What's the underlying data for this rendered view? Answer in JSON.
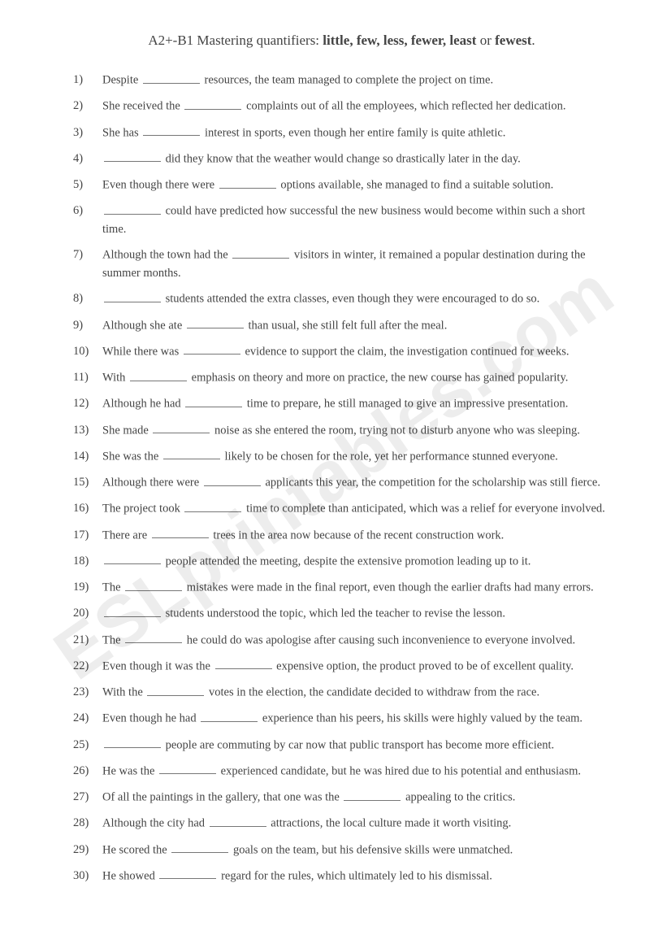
{
  "title_prefix": "A2+-B1 Mastering quantifiers: ",
  "title_words": "little, few, less, fewer, least",
  "title_or": " or ",
  "title_last": "fewest",
  "title_period": ".",
  "watermark": "ESLprintables.com",
  "items": [
    {
      "n": "1)",
      "pre": "Despite ",
      "post": " resources, the team managed to complete the project on time."
    },
    {
      "n": "2)",
      "pre": "She received the ",
      "post": " complaints out of all the employees, which reflected her dedication."
    },
    {
      "n": "3)",
      "pre": "She has ",
      "post": " interest in sports, even though her entire family is quite athletic."
    },
    {
      "n": "4)",
      "pre": "",
      "post": " did they know that the weather would change so drastically later in the day."
    },
    {
      "n": "5)",
      "pre": "Even though there were ",
      "post": " options available, she managed to find a suitable solution."
    },
    {
      "n": "6)",
      "pre": "",
      "post": " could have predicted how successful the new business would become within such a short time."
    },
    {
      "n": "7)",
      "pre": "Although the town had the ",
      "post": " visitors in winter, it remained a popular destination during the summer months."
    },
    {
      "n": "8)",
      "pre": "",
      "post": " students attended the extra classes, even though they were encouraged to do so."
    },
    {
      "n": "9)",
      "pre": "Although she ate ",
      "post": " than usual, she still felt full after the meal."
    },
    {
      "n": "10)",
      "pre": "While there was ",
      "post": " evidence to support the claim, the investigation continued for weeks."
    },
    {
      "n": "11)",
      "pre": "With ",
      "post": " emphasis on theory and more on practice, the new course has gained popularity."
    },
    {
      "n": "12)",
      "pre": "Although he had ",
      "post": " time to prepare, he still managed to give an impressive presentation."
    },
    {
      "n": "13)",
      "pre": "She made ",
      "post": " noise as she entered the room, trying not to disturb anyone who was sleeping."
    },
    {
      "n": "14)",
      "pre": "She was the ",
      "post": " likely to be chosen for the role, yet her performance stunned everyone."
    },
    {
      "n": "15)",
      "pre": "Although there were ",
      "post": " applicants this year, the competition for the scholarship was still fierce."
    },
    {
      "n": "16)",
      "pre": "The project took ",
      "post": " time to complete than anticipated, which was a relief for everyone involved."
    },
    {
      "n": "17)",
      "pre": "There are ",
      "post": " trees in the area now because of the recent construction work."
    },
    {
      "n": "18)",
      "pre": "",
      "post": " people attended the meeting, despite the extensive promotion leading up to it."
    },
    {
      "n": "19)",
      "pre": "The ",
      "post": " mistakes were made in the final report, even though the earlier drafts had many errors."
    },
    {
      "n": "20)",
      "pre": "",
      "post": " students understood the topic, which led the teacher to revise the lesson."
    },
    {
      "n": "21)",
      "pre": "The ",
      "post": " he could do was apologise after causing such inconvenience to everyone involved."
    },
    {
      "n": "22)",
      "pre": "Even though it was the ",
      "post": " expensive option, the product proved to be of excellent quality."
    },
    {
      "n": "23)",
      "pre": "With the ",
      "post": " votes in the election, the candidate decided to withdraw from the race."
    },
    {
      "n": "24)",
      "pre": "Even though he had ",
      "post": " experience than his peers, his skills were highly valued by the team."
    },
    {
      "n": "25)",
      "pre": "",
      "post": " people are commuting by car now that public transport has become more efficient."
    },
    {
      "n": "26)",
      "pre": "He was the ",
      "post": " experienced candidate, but he was hired due to his potential and enthusiasm."
    },
    {
      "n": "27)",
      "pre": "Of all the paintings in the gallery, that one was the ",
      "post": " appealing to the critics."
    },
    {
      "n": "28)",
      "pre": "Although the city had ",
      "post": " attractions, the local culture made it worth visiting."
    },
    {
      "n": "29)",
      "pre": "He scored the ",
      "post": " goals on the team, but his defensive skills were unmatched."
    },
    {
      "n": "30)",
      "pre": "He showed ",
      "post": " regard for the rules, which ultimately led to his dismissal."
    }
  ]
}
